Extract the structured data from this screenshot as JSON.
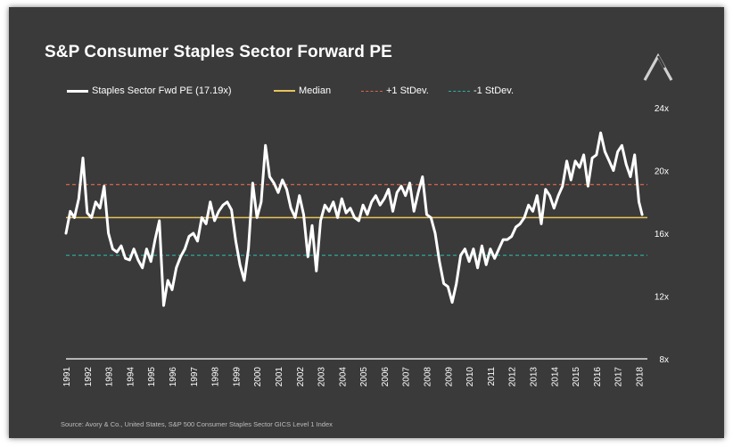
{
  "title": "S&P Consumer Staples Sector Forward PE",
  "source": "Source: Avory & Co., United States, S&P 500 Consumer Staples Sector GICS Level 1 Index",
  "logo_icon": "avory-logo-icon",
  "legend": [
    {
      "key": "pe",
      "label": "Staples Sector Fwd PE  (17.19x)",
      "color": "#ffffff",
      "style": "solid"
    },
    {
      "key": "median",
      "label": "Median",
      "color": "#e8c35c",
      "style": "solid"
    },
    {
      "key": "plus1",
      "label": "+1 StDev.",
      "color": "#d9654b",
      "style": "dashed"
    },
    {
      "key": "minus1",
      "label": "-1 StDev.",
      "color": "#2ab3a3",
      "style": "dashed"
    }
  ],
  "chart_data": {
    "type": "line",
    "title": "S&P Consumer Staples Sector Forward PE",
    "xlabel": "",
    "ylabel": "",
    "xlim": [
      1991.0,
      2018.4
    ],
    "ylim": [
      8,
      24
    ],
    "y_ticks": [
      "8x",
      "12x",
      "16x",
      "20x",
      "24x"
    ],
    "y_tick_values": [
      8,
      12,
      16,
      20,
      24
    ],
    "x_ticks": [
      "1991",
      "1992",
      "1993",
      "1994",
      "1995",
      "1996",
      "1997",
      "1998",
      "1999",
      "2000",
      "2001",
      "2002",
      "2003",
      "2004",
      "2005",
      "2006",
      "2007",
      "2008",
      "2009",
      "2010",
      "2011",
      "2012",
      "2013",
      "2014",
      "2015",
      "2016",
      "2017",
      "2018"
    ],
    "y_axis_side": "right",
    "grid": false,
    "legend_position": "top",
    "series": [
      {
        "name": "Staples Sector Fwd PE  (17.19x)",
        "color": "#ffffff",
        "x": [
          1991.0,
          1991.2,
          1991.4,
          1991.6,
          1991.8,
          1992.0,
          1992.2,
          1992.4,
          1992.6,
          1992.8,
          1993.0,
          1993.2,
          1993.4,
          1993.6,
          1993.8,
          1994.0,
          1994.2,
          1994.4,
          1994.6,
          1994.8,
          1995.0,
          1995.2,
          1995.4,
          1995.6,
          1995.8,
          1996.0,
          1996.2,
          1996.4,
          1996.6,
          1996.8,
          1997.0,
          1997.2,
          1997.4,
          1997.6,
          1997.8,
          1998.0,
          1998.2,
          1998.4,
          1998.6,
          1998.8,
          1999.0,
          1999.2,
          1999.4,
          1999.6,
          1999.8,
          2000.0,
          2000.2,
          2000.4,
          2000.6,
          2000.8,
          2001.0,
          2001.2,
          2001.4,
          2001.6,
          2001.8,
          2002.0,
          2002.2,
          2002.4,
          2002.6,
          2002.8,
          2003.0,
          2003.2,
          2003.4,
          2003.6,
          2003.8,
          2004.0,
          2004.2,
          2004.4,
          2004.6,
          2004.8,
          2005.0,
          2005.2,
          2005.4,
          2005.6,
          2005.8,
          2006.0,
          2006.2,
          2006.4,
          2006.6,
          2006.8,
          2007.0,
          2007.2,
          2007.4,
          2007.6,
          2007.8,
          2008.0,
          2008.2,
          2008.4,
          2008.6,
          2008.8,
          2009.0,
          2009.2,
          2009.4,
          2009.6,
          2009.8,
          2010.0,
          2010.2,
          2010.4,
          2010.6,
          2010.8,
          2011.0,
          2011.2,
          2011.4,
          2011.6,
          2011.8,
          2012.0,
          2012.2,
          2012.4,
          2012.6,
          2012.8,
          2013.0,
          2013.2,
          2013.4,
          2013.6,
          2013.8,
          2014.0,
          2014.2,
          2014.4,
          2014.6,
          2014.8,
          2015.0,
          2015.2,
          2015.4,
          2015.6,
          2015.8,
          2016.0,
          2016.2,
          2016.4,
          2016.6,
          2016.8,
          2017.0,
          2017.2,
          2017.4,
          2017.6,
          2017.8,
          2018.0,
          2018.15
        ],
        "values": [
          16.0,
          17.4,
          17.0,
          18.2,
          20.8,
          17.3,
          17.0,
          18.0,
          17.6,
          19.0,
          16.0,
          15.0,
          14.8,
          15.2,
          14.4,
          14.3,
          15.0,
          14.3,
          13.8,
          15.0,
          14.2,
          15.6,
          16.8,
          11.4,
          13.0,
          12.4,
          13.8,
          14.5,
          15.0,
          15.8,
          16.0,
          15.5,
          17.0,
          16.6,
          18.0,
          16.8,
          17.4,
          17.8,
          18.0,
          17.5,
          15.5,
          14.0,
          13.0,
          15.0,
          19.2,
          17.0,
          18.0,
          21.6,
          19.6,
          19.2,
          18.6,
          19.4,
          18.8,
          17.6,
          17.0,
          18.4,
          17.2,
          14.5,
          16.5,
          13.6,
          16.8,
          17.8,
          17.4,
          18.0,
          17.0,
          18.2,
          17.3,
          17.6,
          17.0,
          16.8,
          17.8,
          17.2,
          18.0,
          18.4,
          17.8,
          18.2,
          18.8,
          17.4,
          18.6,
          19.0,
          18.4,
          19.2,
          17.4,
          18.6,
          19.6,
          17.2,
          17.0,
          16.0,
          14.2,
          12.8,
          12.6,
          11.6,
          12.8,
          14.6,
          15.0,
          14.2,
          15.0,
          13.8,
          15.2,
          14.0,
          15.0,
          14.4,
          15.0,
          15.6,
          15.6,
          15.8,
          16.4,
          16.6,
          17.0,
          17.8,
          17.4,
          18.4,
          16.6,
          18.8,
          18.4,
          17.6,
          18.4,
          19.0,
          20.6,
          19.4,
          20.6,
          20.2,
          21.0,
          19.0,
          20.8,
          21.0,
          22.4,
          21.2,
          20.6,
          20.0,
          21.2,
          21.6,
          20.4,
          19.6,
          21.0,
          18.0,
          17.19
        ],
        "line_width": 3
      },
      {
        "name": "Median",
        "color": "#e8c35c",
        "constant": 17.0,
        "style": "solid"
      },
      {
        "name": "+1 StDev.",
        "color": "#d9654b",
        "constant": 19.1,
        "style": "dashed"
      },
      {
        "name": "-1 StDev.",
        "color": "#2ab3a3",
        "constant": 14.6,
        "style": "dashed"
      }
    ]
  }
}
